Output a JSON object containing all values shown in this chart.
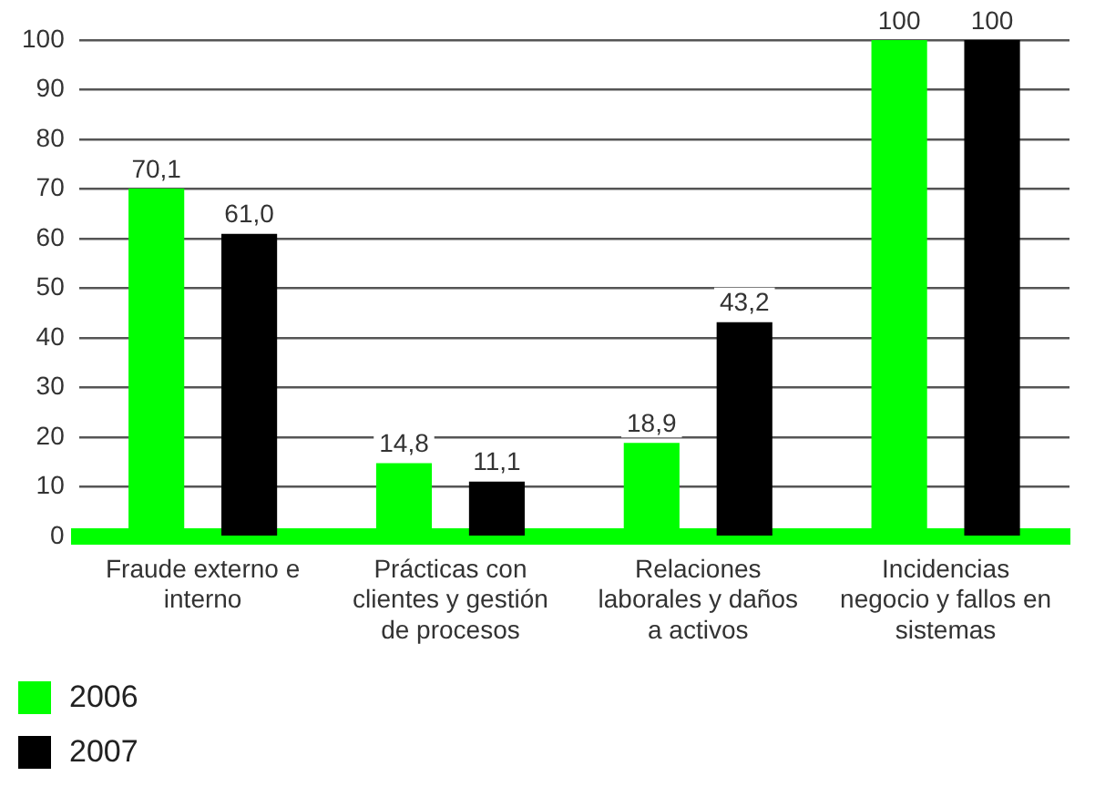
{
  "chart_data": {
    "type": "bar",
    "categories": [
      "Fraude externo e interno",
      "Prácticas con clientes y gestión de procesos",
      "Relaciones laborales y daños a activos",
      "Incidencias negocio y fallos en sistemas"
    ],
    "series": [
      {
        "name": "2006",
        "color": "#00ff00",
        "values": [
          70.1,
          14.8,
          18.9,
          100
        ],
        "value_labels": [
          "70,1",
          "14,8",
          "18,9",
          "100"
        ]
      },
      {
        "name": "2007",
        "color": "#000000",
        "values": [
          61.0,
          11.1,
          43.2,
          100
        ],
        "value_labels": [
          "61,0",
          "11,1",
          "43,2",
          "100"
        ]
      }
    ],
    "ylim": [
      0,
      100
    ],
    "yticks": [
      0,
      10,
      20,
      30,
      40,
      50,
      60,
      70,
      80,
      90,
      100
    ],
    "grid": "y",
    "legend": "bottom left"
  }
}
